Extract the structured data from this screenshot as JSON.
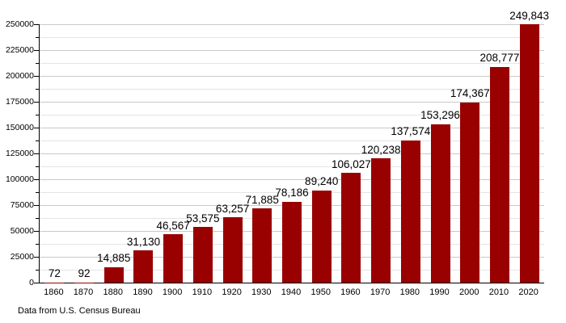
{
  "chart_data": {
    "type": "bar",
    "title": "",
    "categories": [
      "1860",
      "1870",
      "1880",
      "1890",
      "1900",
      "1910",
      "1920",
      "1930",
      "1940",
      "1950",
      "1960",
      "1970",
      "1980",
      "1990",
      "2000",
      "2010",
      "2020"
    ],
    "values": [
      72,
      92,
      14885,
      31130,
      46567,
      53575,
      63257,
      71885,
      78186,
      89240,
      106027,
      120238,
      137574,
      153296,
      174367,
      208777,
      249843
    ],
    "value_labels": [
      "72",
      "92",
      "14,885",
      "31,130",
      "46,567",
      "53,575",
      "63,257",
      "71,885",
      "78,186",
      "89,240",
      "106,027",
      "120,238",
      "137,574",
      "153,296",
      "174,367",
      "208,777",
      "249,843"
    ],
    "xlabel": "",
    "ylabel": "",
    "ylim": [
      0,
      250000
    ],
    "y_major_step": 25000,
    "y_minor_step": 12500,
    "grid": "horizontal",
    "legend_position": "none",
    "caption": "Data from U.S. Census Bureau",
    "colors": {
      "bar": "#990000",
      "grid_major": "#c9c9c9",
      "grid_minor": "#e4e4e4",
      "axis": "#000000",
      "text": "#000000",
      "background": "#ffffff"
    }
  }
}
